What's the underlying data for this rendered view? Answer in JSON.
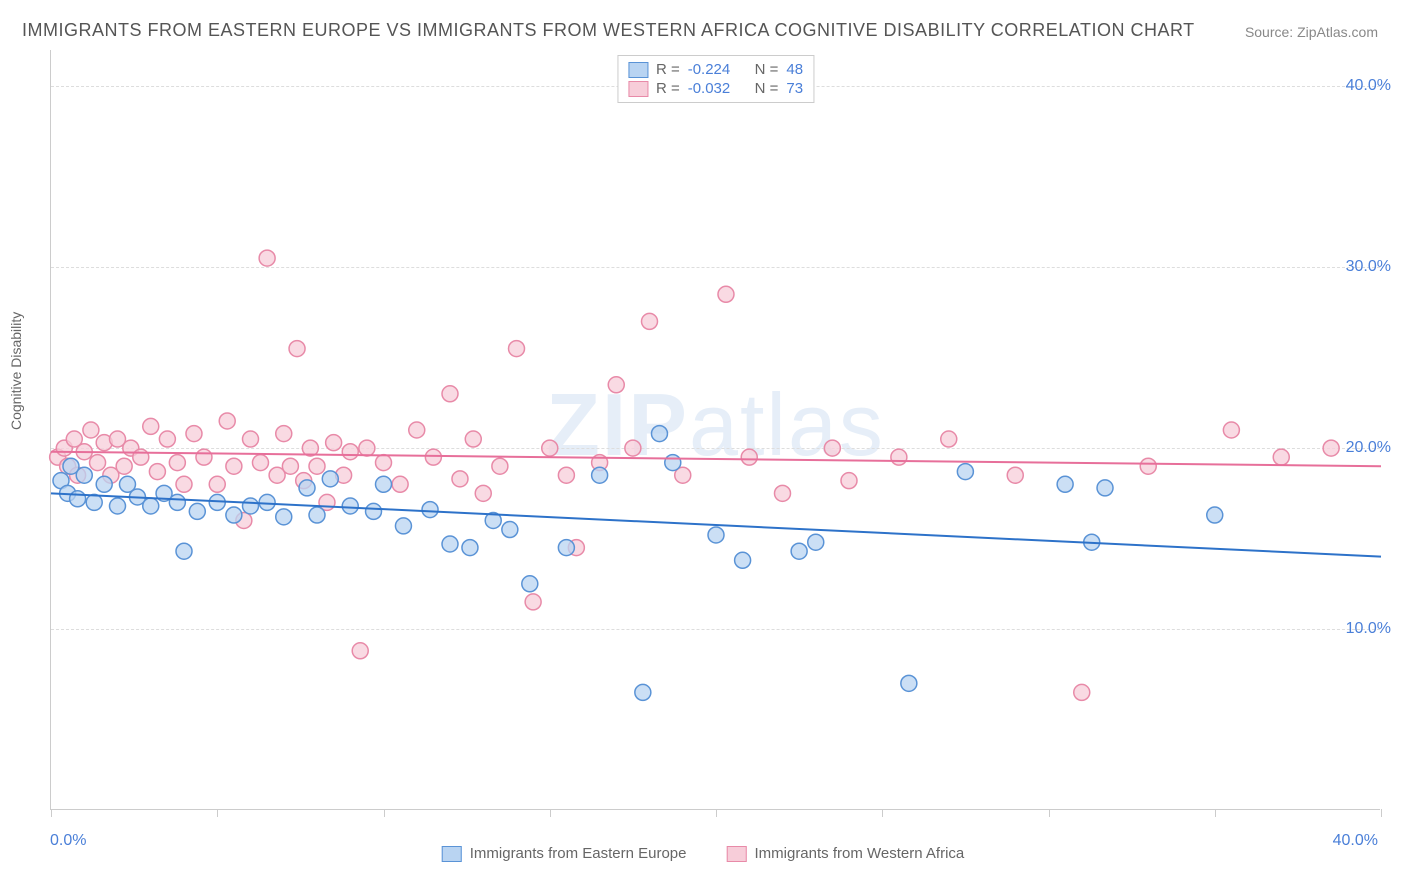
{
  "title": "IMMIGRANTS FROM EASTERN EUROPE VS IMMIGRANTS FROM WESTERN AFRICA COGNITIVE DISABILITY CORRELATION CHART",
  "source": "Source: ZipAtlas.com",
  "watermark": "ZIPatlas",
  "y_axis_label": "Cognitive Disability",
  "chart": {
    "type": "scatter",
    "xlim": [
      0,
      40
    ],
    "ylim": [
      0,
      42
    ],
    "x_ticks": [
      0,
      5,
      10,
      15,
      20,
      25,
      30,
      35,
      40
    ],
    "x_tick_labels": {
      "0": "0.0%",
      "40": "40.0%"
    },
    "y_ticks": [
      10,
      20,
      30,
      40
    ],
    "y_tick_labels": [
      "10.0%",
      "20.0%",
      "30.0%",
      "40.0%"
    ],
    "grid_color": "#dddddd",
    "background_color": "#ffffff",
    "series": [
      {
        "name": "Immigrants from Eastern Europe",
        "r": "-0.224",
        "n": "48",
        "marker_color_fill": "#b9d4f2",
        "marker_color_stroke": "#5a93d6",
        "line_color": "#2d72c9",
        "marker_radius": 8,
        "trend": {
          "x1": 0,
          "y1": 17.5,
          "x2": 40,
          "y2": 14.0
        },
        "points": [
          [
            0.3,
            18.2
          ],
          [
            0.5,
            17.5
          ],
          [
            0.6,
            19.0
          ],
          [
            0.8,
            17.2
          ],
          [
            1.0,
            18.5
          ],
          [
            1.3,
            17.0
          ],
          [
            1.6,
            18.0
          ],
          [
            2.0,
            16.8
          ],
          [
            2.3,
            18.0
          ],
          [
            2.6,
            17.3
          ],
          [
            3.0,
            16.8
          ],
          [
            3.4,
            17.5
          ],
          [
            3.8,
            17.0
          ],
          [
            4.0,
            14.3
          ],
          [
            4.4,
            16.5
          ],
          [
            5.0,
            17.0
          ],
          [
            5.5,
            16.3
          ],
          [
            6.0,
            16.8
          ],
          [
            6.5,
            17.0
          ],
          [
            7.0,
            16.2
          ],
          [
            7.7,
            17.8
          ],
          [
            8.0,
            16.3
          ],
          [
            8.4,
            18.3
          ],
          [
            9.0,
            16.8
          ],
          [
            9.7,
            16.5
          ],
          [
            10.0,
            18.0
          ],
          [
            10.6,
            15.7
          ],
          [
            11.4,
            16.6
          ],
          [
            12.0,
            14.7
          ],
          [
            12.6,
            14.5
          ],
          [
            13.3,
            16.0
          ],
          [
            13.8,
            15.5
          ],
          [
            14.4,
            12.5
          ],
          [
            15.5,
            14.5
          ],
          [
            16.5,
            18.5
          ],
          [
            17.8,
            6.5
          ],
          [
            18.3,
            20.8
          ],
          [
            18.7,
            19.2
          ],
          [
            20.0,
            15.2
          ],
          [
            20.8,
            13.8
          ],
          [
            22.5,
            14.3
          ],
          [
            23.0,
            14.8
          ],
          [
            25.8,
            7.0
          ],
          [
            27.5,
            18.7
          ],
          [
            30.5,
            18.0
          ],
          [
            31.3,
            14.8
          ],
          [
            31.7,
            17.8
          ],
          [
            35.0,
            16.3
          ]
        ]
      },
      {
        "name": "Immigrants from Western Africa",
        "r": "-0.032",
        "n": "73",
        "marker_color_fill": "#f7cdd9",
        "marker_color_stroke": "#e88aa8",
        "line_color": "#e76f9a",
        "marker_radius": 8,
        "trend": {
          "x1": 0,
          "y1": 19.8,
          "x2": 40,
          "y2": 19.0
        },
        "points": [
          [
            0.2,
            19.5
          ],
          [
            0.4,
            20.0
          ],
          [
            0.5,
            19.0
          ],
          [
            0.7,
            20.5
          ],
          [
            0.8,
            18.5
          ],
          [
            1.0,
            19.8
          ],
          [
            1.2,
            21.0
          ],
          [
            1.4,
            19.2
          ],
          [
            1.6,
            20.3
          ],
          [
            1.8,
            18.5
          ],
          [
            2.0,
            20.5
          ],
          [
            2.2,
            19.0
          ],
          [
            2.4,
            20.0
          ],
          [
            2.7,
            19.5
          ],
          [
            3.0,
            21.2
          ],
          [
            3.2,
            18.7
          ],
          [
            3.5,
            20.5
          ],
          [
            3.8,
            19.2
          ],
          [
            4.0,
            18.0
          ],
          [
            4.3,
            20.8
          ],
          [
            4.6,
            19.5
          ],
          [
            5.0,
            18.0
          ],
          [
            5.3,
            21.5
          ],
          [
            5.5,
            19.0
          ],
          [
            5.8,
            16.0
          ],
          [
            6.0,
            20.5
          ],
          [
            6.3,
            19.2
          ],
          [
            6.5,
            30.5
          ],
          [
            6.8,
            18.5
          ],
          [
            7.0,
            20.8
          ],
          [
            7.2,
            19.0
          ],
          [
            7.4,
            25.5
          ],
          [
            7.6,
            18.2
          ],
          [
            7.8,
            20.0
          ],
          [
            8.0,
            19.0
          ],
          [
            8.3,
            17.0
          ],
          [
            8.5,
            20.3
          ],
          [
            8.8,
            18.5
          ],
          [
            9.0,
            19.8
          ],
          [
            9.3,
            8.8
          ],
          [
            9.5,
            20.0
          ],
          [
            10.0,
            19.2
          ],
          [
            10.5,
            18.0
          ],
          [
            11.0,
            21.0
          ],
          [
            11.5,
            19.5
          ],
          [
            12.0,
            23.0
          ],
          [
            12.3,
            18.3
          ],
          [
            12.7,
            20.5
          ],
          [
            13.0,
            17.5
          ],
          [
            13.5,
            19.0
          ],
          [
            14.0,
            25.5
          ],
          [
            14.5,
            11.5
          ],
          [
            15.0,
            20.0
          ],
          [
            15.5,
            18.5
          ],
          [
            15.8,
            14.5
          ],
          [
            16.5,
            19.2
          ],
          [
            17.0,
            23.5
          ],
          [
            17.5,
            20.0
          ],
          [
            18.0,
            27.0
          ],
          [
            19.0,
            18.5
          ],
          [
            20.3,
            28.5
          ],
          [
            21.0,
            19.5
          ],
          [
            22.0,
            17.5
          ],
          [
            23.5,
            20.0
          ],
          [
            24.0,
            18.2
          ],
          [
            25.5,
            19.5
          ],
          [
            27.0,
            20.5
          ],
          [
            29.0,
            18.5
          ],
          [
            31.0,
            6.5
          ],
          [
            33.0,
            19.0
          ],
          [
            35.5,
            21.0
          ],
          [
            37.0,
            19.5
          ],
          [
            38.5,
            20.0
          ]
        ]
      }
    ]
  },
  "legend_labels": {
    "r_prefix": "R = ",
    "n_prefix": "N = "
  }
}
